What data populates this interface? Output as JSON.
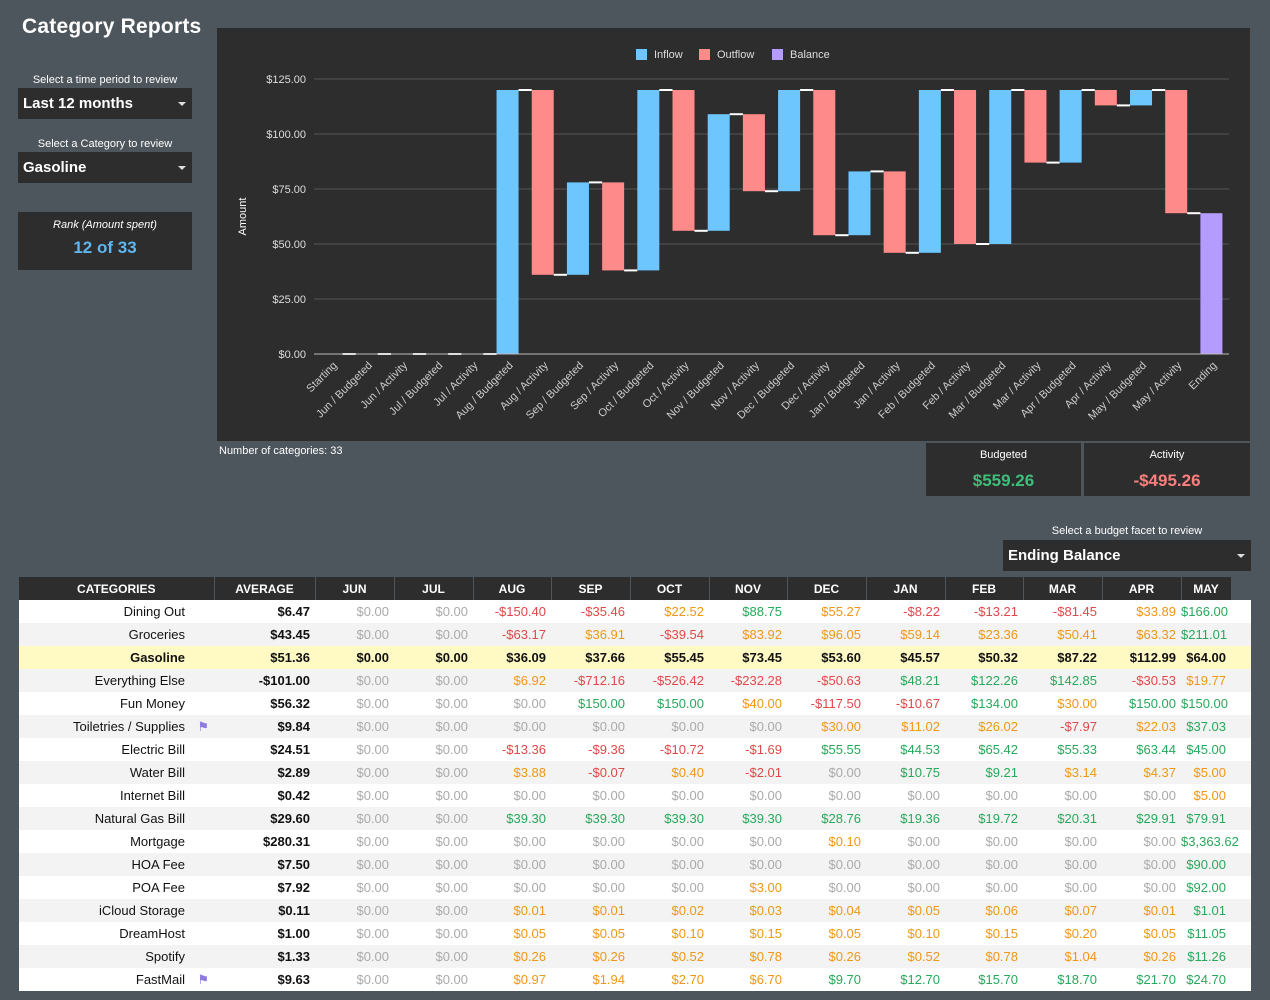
{
  "page": {
    "title": "Category Reports"
  },
  "controls": {
    "period_label": "Select a time period to review",
    "period_value": "Last 12 months",
    "category_label": "Select a Category to review",
    "category_value": "Gasoline",
    "facet_label": "Select a budget facet to review",
    "facet_value": "Ending Balance"
  },
  "rank": {
    "label": "Rank (Amount spent)",
    "value": "12 of 33"
  },
  "note": "Number of categories: 33",
  "summary": {
    "budgeted_label": "Budgeted",
    "budgeted_value": "$559.26",
    "activity_label": "Activity",
    "activity_value": "-$495.26"
  },
  "colors": {
    "inflow": "#6ec6ff",
    "outflow": "#ff8a8a",
    "balance": "#b49cff",
    "positive": "#27a85a",
    "negative": "#e04848",
    "warning": "#ef9716"
  },
  "chart_data": {
    "type": "waterfall",
    "ylabel": "Amount",
    "ylim": [
      0,
      125
    ],
    "yticks": [
      "$0.00",
      "$25.00",
      "$50.00",
      "$75.00",
      "$100.00",
      "$125.00"
    ],
    "legend": [
      "Inflow",
      "Outflow",
      "Balance"
    ],
    "categories": [
      "Starting",
      "Jun / Budgeted",
      "Jun / Activity",
      "Jul / Budgeted",
      "Jul / Activity",
      "Aug / Budgeted",
      "Aug / Activity",
      "Sep / Budgeted",
      "Sep / Activity",
      "Oct / Budgeted",
      "Oct / Activity",
      "Nov / Budgeted",
      "Nov / Activity",
      "Dec / Budgeted",
      "Dec / Activity",
      "Jan / Budgeted",
      "Jan / Activity",
      "Feb / Budgeted",
      "Feb / Activity",
      "Mar / Budgeted",
      "Mar / Activity",
      "Apr / Budgeted",
      "Apr / Activity",
      "May / Budgeted",
      "May / Activity",
      "Ending"
    ],
    "bars": [
      {
        "type": "Balance",
        "from": 0,
        "to": 0
      },
      {
        "type": "Inflow",
        "from": 0,
        "to": 0
      },
      {
        "type": "Outflow",
        "from": 0,
        "to": 0
      },
      {
        "type": "Inflow",
        "from": 0,
        "to": 0
      },
      {
        "type": "Outflow",
        "from": 0,
        "to": 0
      },
      {
        "type": "Inflow",
        "from": 0,
        "to": 120
      },
      {
        "type": "Outflow",
        "from": 120,
        "to": 36
      },
      {
        "type": "Inflow",
        "from": 36,
        "to": 78
      },
      {
        "type": "Outflow",
        "from": 78,
        "to": 38
      },
      {
        "type": "Inflow",
        "from": 38,
        "to": 120
      },
      {
        "type": "Outflow",
        "from": 120,
        "to": 56
      },
      {
        "type": "Inflow",
        "from": 56,
        "to": 109
      },
      {
        "type": "Outflow",
        "from": 109,
        "to": 74
      },
      {
        "type": "Inflow",
        "from": 74,
        "to": 120
      },
      {
        "type": "Outflow",
        "from": 120,
        "to": 54
      },
      {
        "type": "Inflow",
        "from": 54,
        "to": 83
      },
      {
        "type": "Outflow",
        "from": 83,
        "to": 46
      },
      {
        "type": "Inflow",
        "from": 46,
        "to": 120
      },
      {
        "type": "Outflow",
        "from": 120,
        "to": 50
      },
      {
        "type": "Inflow",
        "from": 50,
        "to": 120
      },
      {
        "type": "Outflow",
        "from": 120,
        "to": 87
      },
      {
        "type": "Inflow",
        "from": 87,
        "to": 120
      },
      {
        "type": "Outflow",
        "from": 120,
        "to": 113
      },
      {
        "type": "Inflow",
        "from": 113,
        "to": 120
      },
      {
        "type": "Outflow",
        "from": 120,
        "to": 64
      },
      {
        "type": "Balance",
        "from": 0,
        "to": 64
      }
    ]
  },
  "table": {
    "headers": [
      "CATEGORIES",
      "AVERAGE",
      "JUN",
      "JUL",
      "AUG",
      "SEP",
      "OCT",
      "NOV",
      "DEC",
      "JAN",
      "FEB",
      "MAR",
      "APR",
      "MAY"
    ],
    "rows": [
      {
        "name": "Dining Out",
        "flag": "",
        "avg": "$6.47",
        "cells": [
          "$0.00",
          "$0.00",
          "-$150.40",
          "-$35.46",
          "$22.52",
          "$88.75",
          "$55.27",
          "-$8.22",
          "-$13.21",
          "-$81.45",
          "$33.89",
          "$166.00"
        ],
        "cls": [
          "z",
          "z",
          "n",
          "n",
          "o",
          "g",
          "o",
          "n",
          "n",
          "n",
          "o",
          "g"
        ]
      },
      {
        "name": "Groceries",
        "flag": "",
        "avg": "$43.45",
        "cells": [
          "$0.00",
          "$0.00",
          "-$63.17",
          "$36.91",
          "-$39.54",
          "$83.92",
          "$96.05",
          "$59.14",
          "$23.36",
          "$50.41",
          "$63.32",
          "$211.01"
        ],
        "cls": [
          "z",
          "z",
          "n",
          "o",
          "n",
          "o",
          "o",
          "o",
          "o",
          "o",
          "o",
          "g"
        ]
      },
      {
        "name": "Gasoline",
        "flag": "",
        "avg": "$51.36",
        "highlight": true,
        "cells": [
          "$0.00",
          "$0.00",
          "$36.09",
          "$37.66",
          "$55.45",
          "$73.45",
          "$53.60",
          "$45.57",
          "$50.32",
          "$87.22",
          "$112.99",
          "$64.00"
        ],
        "cls": [
          "k",
          "k",
          "k",
          "k",
          "k",
          "k",
          "k",
          "k",
          "k",
          "k",
          "k",
          "k"
        ]
      },
      {
        "name": "Everything Else",
        "flag": "",
        "avg": "-$101.00",
        "cells": [
          "$0.00",
          "$0.00",
          "$6.92",
          "-$712.16",
          "-$526.42",
          "-$232.28",
          "-$50.63",
          "$48.21",
          "$122.26",
          "$142.85",
          "-$30.53",
          "$19.77"
        ],
        "cls": [
          "z",
          "z",
          "o",
          "n",
          "n",
          "n",
          "n",
          "g",
          "g",
          "g",
          "n",
          "o"
        ]
      },
      {
        "name": "Fun Money",
        "flag": "",
        "avg": "$56.32",
        "cells": [
          "$0.00",
          "$0.00",
          "$0.00",
          "$150.00",
          "$150.00",
          "$40.00",
          "-$117.50",
          "-$10.67",
          "$134.00",
          "$30.00",
          "$150.00",
          "$150.00"
        ],
        "cls": [
          "z",
          "z",
          "z",
          "g",
          "g",
          "o",
          "n",
          "n",
          "g",
          "o",
          "g",
          "g"
        ]
      },
      {
        "name": "Toiletries / Supplies",
        "flag": "⚑",
        "avg": "$9.84",
        "cells": [
          "$0.00",
          "$0.00",
          "$0.00",
          "$0.00",
          "$0.00",
          "$0.00",
          "$30.00",
          "$11.02",
          "$26.02",
          "-$7.97",
          "$22.03",
          "$37.03"
        ],
        "cls": [
          "z",
          "z",
          "z",
          "z",
          "z",
          "z",
          "o",
          "o",
          "o",
          "n",
          "o",
          "g"
        ]
      },
      {
        "name": "Electric Bill",
        "flag": "",
        "avg": "$24.51",
        "cells": [
          "$0.00",
          "$0.00",
          "-$13.36",
          "-$9.36",
          "-$10.72",
          "-$1.69",
          "$55.55",
          "$44.53",
          "$65.42",
          "$55.33",
          "$63.44",
          "$45.00"
        ],
        "cls": [
          "z",
          "z",
          "n",
          "n",
          "n",
          "n",
          "g",
          "g",
          "g",
          "g",
          "g",
          "g"
        ]
      },
      {
        "name": "Water Bill",
        "flag": "",
        "avg": "$2.89",
        "cells": [
          "$0.00",
          "$0.00",
          "$3.88",
          "-$0.07",
          "$0.40",
          "-$2.01",
          "$0.00",
          "$10.75",
          "$9.21",
          "$3.14",
          "$4.37",
          "$5.00"
        ],
        "cls": [
          "z",
          "z",
          "o",
          "n",
          "o",
          "n",
          "z",
          "g",
          "g",
          "o",
          "o",
          "o"
        ]
      },
      {
        "name": "Internet Bill",
        "flag": "",
        "avg": "$0.42",
        "cells": [
          "$0.00",
          "$0.00",
          "$0.00",
          "$0.00",
          "$0.00",
          "$0.00",
          "$0.00",
          "$0.00",
          "$0.00",
          "$0.00",
          "$0.00",
          "$5.00"
        ],
        "cls": [
          "z",
          "z",
          "z",
          "z",
          "z",
          "z",
          "z",
          "z",
          "z",
          "z",
          "z",
          "o"
        ]
      },
      {
        "name": "Natural Gas Bill",
        "flag": "",
        "avg": "$29.60",
        "cells": [
          "$0.00",
          "$0.00",
          "$39.30",
          "$39.30",
          "$39.30",
          "$39.30",
          "$28.76",
          "$19.36",
          "$19.72",
          "$20.31",
          "$29.91",
          "$79.91"
        ],
        "cls": [
          "z",
          "z",
          "g",
          "g",
          "g",
          "g",
          "g",
          "g",
          "g",
          "g",
          "g",
          "g"
        ]
      },
      {
        "name": "Mortgage",
        "flag": "",
        "avg": "$280.31",
        "cells": [
          "$0.00",
          "$0.00",
          "$0.00",
          "$0.00",
          "$0.00",
          "$0.00",
          "$0.10",
          "$0.00",
          "$0.00",
          "$0.00",
          "$0.00",
          "$3,363.62"
        ],
        "cls": [
          "z",
          "z",
          "z",
          "z",
          "z",
          "z",
          "o",
          "z",
          "z",
          "z",
          "z",
          "g"
        ]
      },
      {
        "name": "HOA Fee",
        "flag": "",
        "avg": "$7.50",
        "cells": [
          "$0.00",
          "$0.00",
          "$0.00",
          "$0.00",
          "$0.00",
          "$0.00",
          "$0.00",
          "$0.00",
          "$0.00",
          "$0.00",
          "$0.00",
          "$90.00"
        ],
        "cls": [
          "z",
          "z",
          "z",
          "z",
          "z",
          "z",
          "z",
          "z",
          "z",
          "z",
          "z",
          "g"
        ]
      },
      {
        "name": "POA Fee",
        "flag": "",
        "avg": "$7.92",
        "cells": [
          "$0.00",
          "$0.00",
          "$0.00",
          "$0.00",
          "$0.00",
          "$3.00",
          "$0.00",
          "$0.00",
          "$0.00",
          "$0.00",
          "$0.00",
          "$92.00"
        ],
        "cls": [
          "z",
          "z",
          "z",
          "z",
          "z",
          "o",
          "z",
          "z",
          "z",
          "z",
          "z",
          "g"
        ]
      },
      {
        "name": "iCloud Storage",
        "flag": "",
        "avg": "$0.11",
        "cells": [
          "$0.00",
          "$0.00",
          "$0.01",
          "$0.01",
          "$0.02",
          "$0.03",
          "$0.04",
          "$0.05",
          "$0.06",
          "$0.07",
          "$0.01",
          "$1.01"
        ],
        "cls": [
          "z",
          "z",
          "o",
          "o",
          "o",
          "o",
          "o",
          "o",
          "o",
          "o",
          "o",
          "g"
        ]
      },
      {
        "name": "DreamHost",
        "flag": "",
        "avg": "$1.00",
        "cells": [
          "$0.00",
          "$0.00",
          "$0.05",
          "$0.05",
          "$0.10",
          "$0.15",
          "$0.05",
          "$0.10",
          "$0.15",
          "$0.20",
          "$0.05",
          "$11.05"
        ],
        "cls": [
          "z",
          "z",
          "o",
          "o",
          "o",
          "o",
          "o",
          "o",
          "o",
          "o",
          "o",
          "g"
        ]
      },
      {
        "name": "Spotify",
        "flag": "",
        "avg": "$1.33",
        "cells": [
          "$0.00",
          "$0.00",
          "$0.26",
          "$0.26",
          "$0.52",
          "$0.78",
          "$0.26",
          "$0.52",
          "$0.78",
          "$1.04",
          "$0.26",
          "$11.26"
        ],
        "cls": [
          "z",
          "z",
          "o",
          "o",
          "o",
          "o",
          "o",
          "o",
          "o",
          "o",
          "o",
          "g"
        ]
      },
      {
        "name": "FastMail",
        "flag": "⚑",
        "avg": "$9.63",
        "cells": [
          "$0.00",
          "$0.00",
          "$0.97",
          "$1.94",
          "$2.70",
          "$6.70",
          "$9.70",
          "$12.70",
          "$15.70",
          "$18.70",
          "$21.70",
          "$24.70"
        ],
        "cls": [
          "z",
          "z",
          "o",
          "o",
          "o",
          "o",
          "g",
          "g",
          "g",
          "g",
          "g",
          "g"
        ]
      }
    ]
  }
}
